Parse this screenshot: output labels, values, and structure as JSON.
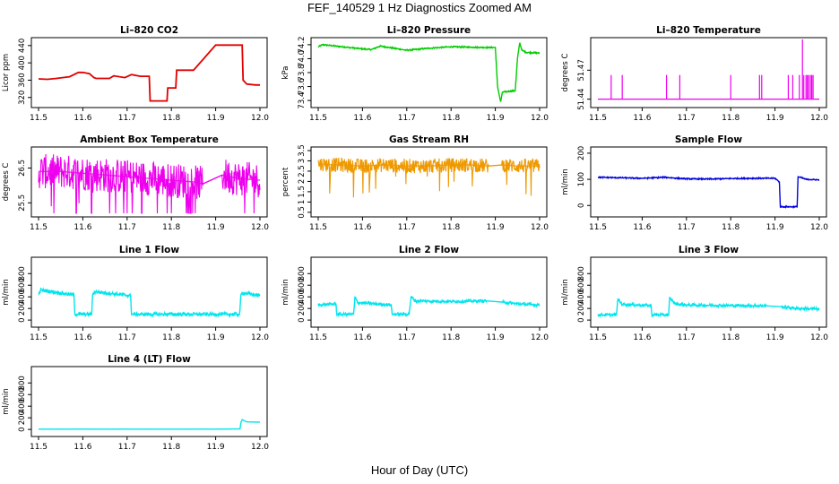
{
  "figure": {
    "title": "FEF_140529  1 Hz Diagnostics Zoomed AM",
    "xlabel": "Hour of Day (UTC)"
  },
  "chart_data": [
    {
      "type": "line",
      "id": "co2",
      "title": "Li–820 CO2",
      "ylabel": "Licor ppm",
      "color": "#e00000",
      "xlim": [
        11.5,
        12.0
      ],
      "xticks": [
        11.5,
        11.6,
        11.7,
        11.8,
        11.9,
        12.0
      ],
      "xtick_labels": [
        "11.5",
        "11.6",
        "11.7",
        "11.8",
        "11.9",
        "12.0"
      ],
      "ylim": [
        305,
        450
      ],
      "yticks": [
        320,
        360,
        400,
        440
      ],
      "ytick_labels": [
        "320",
        "360",
        "400",
        "440"
      ],
      "noise": 0,
      "x": [
        11.5,
        11.52,
        11.54,
        11.57,
        11.59,
        11.6,
        11.615,
        11.625,
        11.63,
        11.66,
        11.67,
        11.695,
        11.71,
        11.73,
        11.75,
        11.752,
        11.79,
        11.792,
        11.81,
        11.812,
        11.83,
        11.85,
        11.9,
        11.902,
        11.95,
        11.96,
        11.962,
        11.97,
        11.99,
        12.0
      ],
      "y": [
        363,
        362,
        364,
        368,
        378,
        378,
        375,
        366,
        364,
        364,
        370,
        366,
        373,
        369,
        369,
        312,
        312,
        342,
        342,
        383,
        383,
        383,
        441,
        441,
        441,
        441,
        360,
        351,
        349,
        349
      ]
    },
    {
      "type": "line",
      "id": "pressure",
      "title": "Li–820 Pressure",
      "ylabel": "kPa",
      "color": "#00cc00",
      "xlim": [
        11.5,
        12.0
      ],
      "xticks": [
        11.5,
        11.6,
        11.7,
        11.8,
        11.9,
        12.0
      ],
      "xtick_labels": [
        "11.5",
        "11.6",
        "11.7",
        "11.8",
        "11.9",
        "12.0"
      ],
      "ylim": [
        73.35,
        74.25
      ],
      "yticks": [
        73.4,
        73.6,
        73.8,
        74.0,
        74.2
      ],
      "ytick_labels": [
        "73.4",
        "73.6",
        "73.8",
        "74.0",
        "74.2"
      ],
      "noise": 0.012,
      "x": [
        11.5,
        11.51,
        11.54,
        11.6,
        11.62,
        11.64,
        11.7,
        11.75,
        11.8,
        11.88,
        11.9,
        11.905,
        11.912,
        11.916,
        11.93,
        11.945,
        11.95,
        11.955,
        11.96,
        11.97,
        12.0
      ],
      "y": [
        74.17,
        74.2,
        74.18,
        74.14,
        74.13,
        74.18,
        74.12,
        74.15,
        74.17,
        74.16,
        74.16,
        73.6,
        73.38,
        73.52,
        73.53,
        73.54,
        74.0,
        74.23,
        74.12,
        74.09,
        74.08
      ]
    },
    {
      "type": "spikes",
      "id": "temperature",
      "title": "Li–820 Temperature",
      "ylabel": "degrees C",
      "color": "#ee00ee",
      "xlim": [
        11.5,
        12.0
      ],
      "xticks": [
        11.5,
        11.6,
        11.7,
        11.8,
        11.9,
        12.0
      ],
      "xtick_labels": [
        "11.5",
        "11.6",
        "11.7",
        "11.8",
        "11.9",
        "12.0"
      ],
      "ylim": [
        51.435,
        51.5
      ],
      "yticks": [
        51.44,
        51.47
      ],
      "ytick_labels": [
        "51.44",
        "51.47"
      ],
      "baseline": 51.44,
      "spike_top": 51.465,
      "spikes": [
        11.53,
        11.555,
        11.655,
        11.685,
        11.8,
        11.865,
        11.87,
        11.93,
        11.94,
        11.955,
        11.965,
        11.97,
        11.973,
        11.976,
        11.98,
        11.983,
        11.986
      ],
      "tall_spikes": [
        11.962
      ]
    },
    {
      "type": "line",
      "id": "ambient",
      "title": "Ambient Box Temperature",
      "ylabel": "degrees C",
      "color": "#ee00ee",
      "xlim": [
        11.5,
        12.0
      ],
      "xticks": [
        11.5,
        11.6,
        11.7,
        11.8,
        11.9,
        12.0
      ],
      "xtick_labels": [
        "11.5",
        "11.6",
        "11.7",
        "11.8",
        "11.9",
        "12.0"
      ],
      "ylim": [
        25.2,
        27.0
      ],
      "yticks": [
        25.5,
        26.5
      ],
      "ytick_labels": [
        "25.5",
        "26.5"
      ],
      "noise": 0.5,
      "dropouts": true,
      "gaps": [
        [
          11.872,
          11.915
        ]
      ],
      "x": [
        11.5,
        11.55,
        11.6,
        11.65,
        11.7,
        11.75,
        11.8,
        11.85,
        11.872,
        11.915,
        11.95,
        12.0
      ],
      "y": [
        26.4,
        26.4,
        26.35,
        26.3,
        26.25,
        26.2,
        26.15,
        26.1,
        26.05,
        26.3,
        26.2,
        26.15
      ]
    },
    {
      "type": "line",
      "id": "rh",
      "title": "Gas Stream RH",
      "ylabel": "percent",
      "color": "#ee9900",
      "xlim": [
        11.5,
        12.0
      ],
      "xticks": [
        11.5,
        11.6,
        11.7,
        11.8,
        11.9,
        12.0
      ],
      "xtick_labels": [
        "11.5",
        "11.6",
        "11.7",
        "11.8",
        "11.9",
        "12.0"
      ],
      "ylim": [
        0.45,
        3.5
      ],
      "yticks": [
        0.5,
        1.0,
        1.5,
        2.0,
        2.5,
        3.0,
        3.5
      ],
      "ytick_labels": [
        "0.5",
        "1",
        "1.5",
        "2",
        "2.5",
        "3",
        "3.5"
      ],
      "noise": 0.35,
      "dropouts": true,
      "gaps": [
        [
          11.885,
          11.915
        ]
      ],
      "x": [
        11.5,
        11.55,
        11.6,
        11.65,
        11.7,
        11.75,
        11.8,
        11.85,
        11.885,
        11.915,
        11.95,
        12.0
      ],
      "y": [
        2.85,
        2.8,
        2.75,
        2.8,
        2.75,
        2.75,
        2.8,
        2.8,
        2.75,
        2.8,
        2.75,
        2.75
      ]
    },
    {
      "type": "line",
      "id": "sample",
      "title": "Sample Flow",
      "ylabel": "ml/min",
      "color": "#0000dd",
      "xlim": [
        11.5,
        12.0
      ],
      "xticks": [
        11.5,
        11.6,
        11.7,
        11.8,
        11.9,
        12.0
      ],
      "xtick_labels": [
        "11.5",
        "11.6",
        "11.7",
        "11.8",
        "11.9",
        "12.0"
      ],
      "ylim": [
        -30,
        210
      ],
      "yticks": [
        0,
        100,
        200
      ],
      "ytick_labels": [
        "0",
        "100",
        "200"
      ],
      "noise": 3,
      "x": [
        11.5,
        11.55,
        11.6,
        11.65,
        11.68,
        11.7,
        11.75,
        11.8,
        11.85,
        11.9,
        11.91,
        11.912,
        11.95,
        11.952,
        11.96,
        11.97,
        12.0
      ],
      "y": [
        108,
        106,
        104,
        108,
        104,
        102,
        101,
        103,
        104,
        104,
        90,
        -5,
        -5,
        110,
        106,
        100,
        98
      ]
    },
    {
      "type": "line",
      "id": "line1",
      "title": "Line 1 Flow",
      "ylabel": "ml/min",
      "color": "#00e5ee",
      "xlim": [
        11.5,
        12.0
      ],
      "xticks": [
        11.5,
        11.6,
        11.7,
        11.8,
        11.9,
        12.0
      ],
      "xtick_labels": [
        "11.5",
        "11.6",
        "11.7",
        "11.8",
        "11.9",
        "12.0"
      ],
      "ylim": [
        -60,
        1020
      ],
      "yticks": [
        0,
        200,
        400,
        600,
        800
      ],
      "ytick_labels": [
        "0",
        "200",
        "400",
        "600",
        "800"
      ],
      "noise": 35,
      "x": [
        11.5,
        11.505,
        11.58,
        11.582,
        11.62,
        11.622,
        11.627,
        11.708,
        11.71,
        11.954,
        11.957,
        11.96,
        12.0
      ],
      "y": [
        430,
        520,
        430,
        100,
        100,
        430,
        490,
        420,
        100,
        100,
        430,
        470,
        420
      ]
    },
    {
      "type": "line",
      "id": "line2",
      "title": "Line 2 Flow",
      "ylabel": "ml/min",
      "color": "#00e5ee",
      "xlim": [
        11.5,
        12.0
      ],
      "xticks": [
        11.5,
        11.6,
        11.7,
        11.8,
        11.9,
        12.0
      ],
      "xtick_labels": [
        "11.5",
        "11.6",
        "11.7",
        "11.8",
        "11.9",
        "12.0"
      ],
      "ylim": [
        -60,
        1020
      ],
      "yticks": [
        0,
        200,
        400,
        600,
        800
      ],
      "ytick_labels": [
        "0",
        "200",
        "400",
        "600",
        "800"
      ],
      "noise": 30,
      "gaps": [
        [
          11.88,
          11.915
        ]
      ],
      "x": [
        11.5,
        11.54,
        11.542,
        11.58,
        11.583,
        11.59,
        11.665,
        11.667,
        11.705,
        11.71,
        11.72,
        11.8,
        11.88,
        11.915,
        11.95,
        12.0
      ],
      "y": [
        260,
        280,
        100,
        100,
        390,
        300,
        260,
        100,
        100,
        400,
        330,
        320,
        330,
        310,
        280,
        260
      ]
    },
    {
      "type": "line",
      "id": "line3",
      "title": "Line 3 Flow",
      "ylabel": "ml/min",
      "color": "#00e5ee",
      "xlim": [
        11.5,
        12.0
      ],
      "xticks": [
        11.5,
        11.6,
        11.7,
        11.8,
        11.9,
        12.0
      ],
      "xtick_labels": [
        "11.5",
        "11.6",
        "11.7",
        "11.8",
        "11.9",
        "12.0"
      ],
      "ylim": [
        -60,
        1020
      ],
      "yticks": [
        0,
        200,
        400,
        600,
        800
      ],
      "ytick_labels": [
        "0",
        "200",
        "400",
        "600",
        "800"
      ],
      "noise": 30,
      "gaps": [
        [
          11.88,
          11.915
        ]
      ],
      "x": [
        11.5,
        11.54,
        11.542,
        11.545,
        11.555,
        11.62,
        11.622,
        11.66,
        11.662,
        11.675,
        11.7,
        11.8,
        11.88,
        11.915,
        11.95,
        12.0
      ],
      "y": [
        90,
        90,
        90,
        360,
        270,
        250,
        90,
        90,
        380,
        280,
        260,
        250,
        245,
        230,
        200,
        190
      ]
    },
    {
      "type": "line",
      "id": "line4",
      "title": "Line 4 (LT) Flow",
      "ylabel": "ml/min",
      "color": "#00e5ee",
      "xlim": [
        11.5,
        12.0
      ],
      "xticks": [
        11.5,
        11.6,
        11.7,
        11.8,
        11.9,
        12.0
      ],
      "xtick_labels": [
        "11.5",
        "11.6",
        "11.7",
        "11.8",
        "11.9",
        "12.0"
      ],
      "ylim": [
        -60,
        1020
      ],
      "yticks": [
        0,
        200,
        400,
        600,
        800
      ],
      "ytick_labels": [
        "0",
        "200",
        "400",
        "600",
        "800"
      ],
      "noise": 2,
      "x": [
        11.5,
        11.9,
        11.955,
        11.957,
        11.96,
        11.97,
        12.0
      ],
      "y": [
        5,
        5,
        10,
        120,
        170,
        130,
        125
      ]
    }
  ]
}
